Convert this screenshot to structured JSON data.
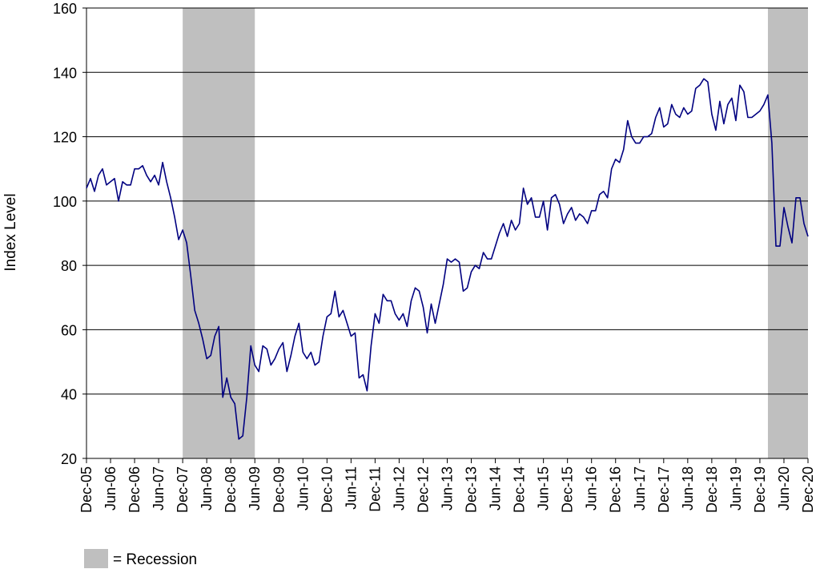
{
  "chart_data": {
    "type": "line",
    "title": "",
    "xlabel": "",
    "ylabel": "Index Level",
    "ylim": [
      20,
      160
    ],
    "y_ticks": [
      20,
      40,
      60,
      80,
      100,
      120,
      140,
      160
    ],
    "grid": "horizontal",
    "line_color": "#000080",
    "recession_color": "#bfbfbf",
    "x_tick_labels": [
      "Dec-05",
      "Jun-06",
      "Dec-06",
      "Jun-07",
      "Dec-07",
      "Jun-08",
      "Dec-08",
      "Jun-09",
      "Dec-09",
      "Jun-10",
      "Dec-10",
      "Jun-11",
      "Dec-11",
      "Jun-12",
      "Dec-12",
      "Jun-13",
      "Dec-13",
      "Jun-14",
      "Dec-14",
      "Jun-15",
      "Dec-15",
      "Jun-16",
      "Dec-16",
      "Jun-17",
      "Dec-17",
      "Jun-18",
      "Dec-18",
      "Jun-19",
      "Dec-19",
      "Jun-20",
      "Dec-20"
    ],
    "recessions": [
      {
        "start": "Dec-07",
        "end": "Jun-09"
      },
      {
        "start": "Feb-20",
        "end": "Dec-20"
      }
    ],
    "legend": {
      "label": "= Recession",
      "placement": "bottom-left"
    },
    "series": [
      {
        "start": "Dec-05",
        "frequency": "monthly",
        "values": [
          104,
          107,
          103,
          108,
          110,
          105,
          106,
          107,
          100,
          106,
          105,
          105,
          110,
          110,
          111,
          108,
          106,
          108,
          105,
          112,
          106,
          101,
          95,
          88,
          91,
          87,
          77,
          66,
          62,
          57,
          51,
          52,
          58,
          61,
          39,
          45,
          39,
          37,
          26,
          27,
          39,
          55,
          49,
          47,
          55,
          54,
          49,
          51,
          54,
          56,
          47,
          52,
          58,
          62,
          53,
          51,
          53,
          49,
          50,
          58,
          64,
          65,
          72,
          64,
          66,
          62,
          58,
          59,
          45,
          46,
          41,
          55,
          65,
          62,
          71,
          69,
          69,
          65,
          63,
          65,
          61,
          69,
          73,
          72,
          67,
          59,
          68,
          62,
          68,
          74,
          82,
          81,
          82,
          81,
          72,
          73,
          78,
          80,
          79,
          84,
          82,
          82,
          86,
          90,
          93,
          89,
          94,
          91,
          93,
          104,
          99,
          101,
          95,
          95,
          100,
          91,
          101,
          102,
          99,
          93,
          96,
          98,
          94,
          96,
          95,
          93,
          97,
          97,
          102,
          103,
          101,
          110,
          113,
          112,
          116,
          125,
          120,
          118,
          118,
          120,
          120,
          121,
          126,
          129,
          123,
          124,
          130,
          127,
          126,
          129,
          127,
          128,
          135,
          136,
          138,
          137,
          127,
          122,
          131,
          124,
          130,
          132,
          125,
          136,
          134,
          126,
          126,
          127,
          128,
          130,
          133,
          118,
          86,
          86,
          98,
          92,
          87,
          101,
          101,
          93,
          89
        ]
      }
    ]
  }
}
